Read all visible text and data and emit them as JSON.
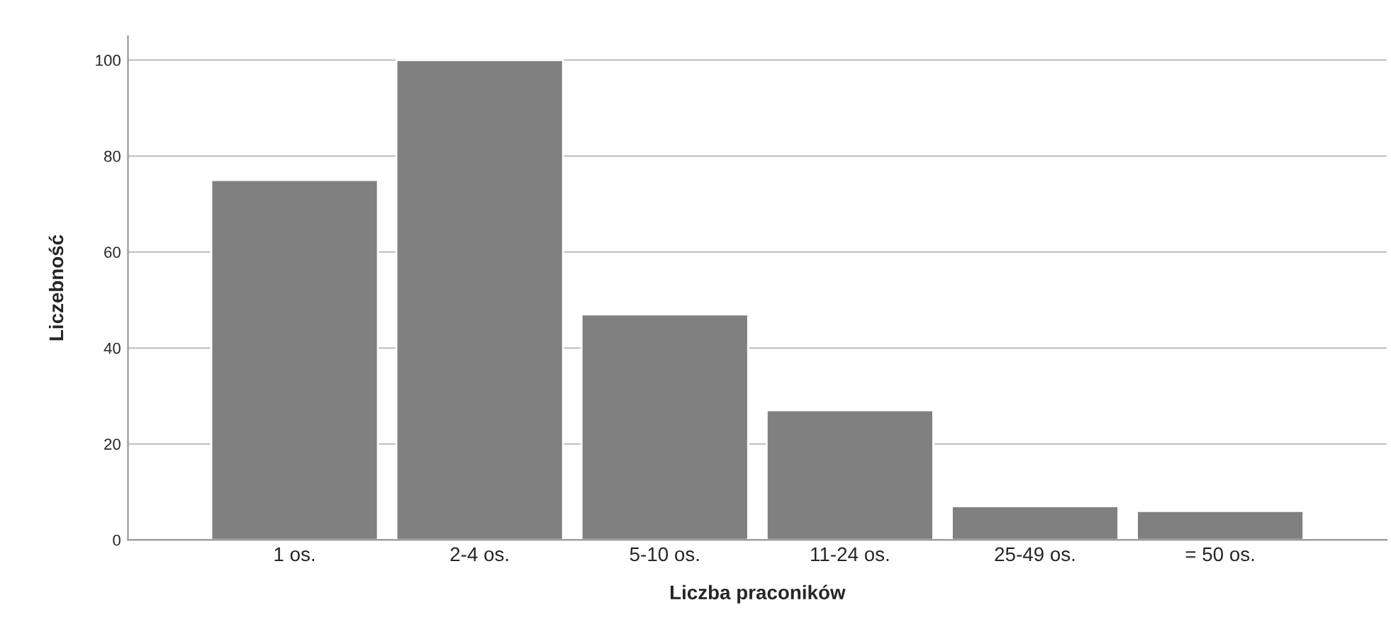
{
  "chart_data": {
    "type": "bar",
    "xlabel": "Liczba praconików",
    "ylabel": "Liczebność",
    "categories": [
      "1 os.",
      "2-4 os.",
      "5-10 os.",
      "11-24 os.",
      "25-49 os.",
      "= 50 os."
    ],
    "values": [
      75,
      100,
      47,
      27,
      7,
      6
    ],
    "color": "#808080",
    "ylim": [
      0,
      105
    ],
    "yticks": [
      0,
      20,
      40,
      60,
      80,
      100
    ],
    "grid": "y"
  }
}
